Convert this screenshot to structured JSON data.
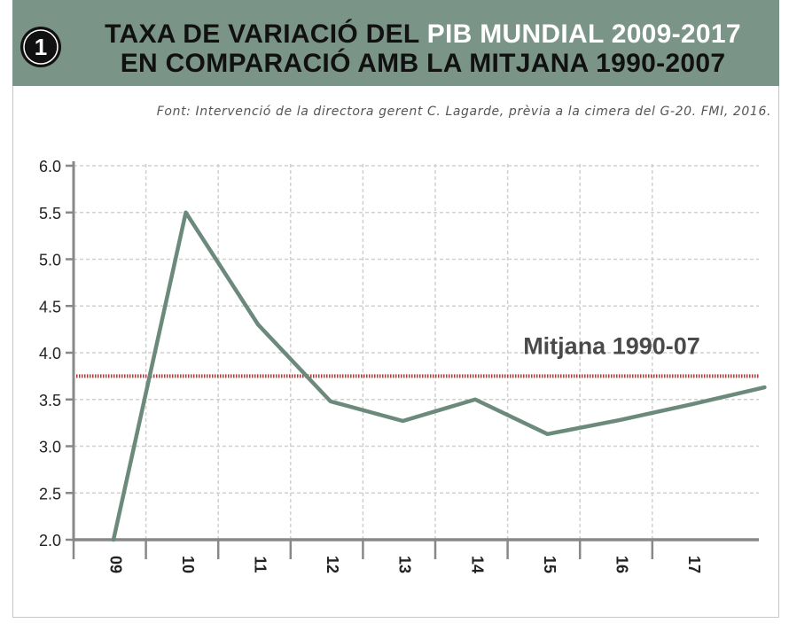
{
  "header": {
    "number": "1",
    "title_line1_prefix": "TAXA DE VARIACIÓ DEL ",
    "title_line1_highlight": "PIB MUNDIAL 2009-2017",
    "title_line2": "EN COMPARACIÓ AMB LA MITJANA 1990-2007"
  },
  "source": "Font: Intervenció de la directora gerent C. Lagarde, prèvia a la cimera del G-20. FMI, 2016.",
  "colors": {
    "header_bg": "#7a9488",
    "line": "#6b8a7c",
    "average_line": "#b03a3a",
    "axis": "#888888",
    "grid": "#d0d0d0"
  },
  "chart_data": {
    "type": "line",
    "x": [
      "09",
      "10",
      "11",
      "12",
      "13",
      "14",
      "15",
      "16",
      "17",
      ""
    ],
    "series": [
      {
        "values": [
          2.0,
          5.5,
          4.3,
          3.48,
          3.27,
          3.5,
          3.13,
          3.28,
          3.45,
          3.63
        ]
      }
    ],
    "reference_line": {
      "label": "Mitjana 1990-07",
      "value": 3.75
    },
    "y_ticks": [
      "2.0",
      "2.5",
      "3.0",
      "3.5",
      "4.0",
      "4.5",
      "5.0",
      "5.5",
      "6.0"
    ],
    "ylim": [
      2.0,
      6.0
    ],
    "grid": true,
    "title": "",
    "xlabel": "",
    "ylabel": ""
  }
}
